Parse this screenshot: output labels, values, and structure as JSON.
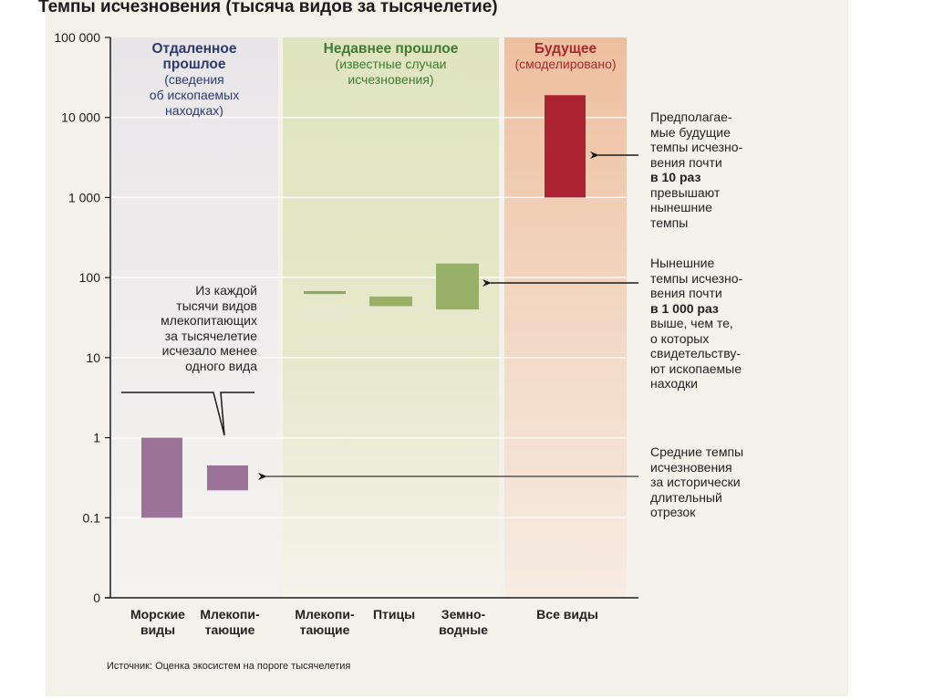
{
  "chart_data": {
    "type": "bar",
    "title": "Темпы исчезновения (тысяча видов за тысячелетие)",
    "yscale": "log",
    "ylim": [
      0.01,
      100000
    ],
    "yticks": [
      {
        "value": 100000,
        "label": "100 000"
      },
      {
        "value": 10000,
        "label": "10 000"
      },
      {
        "value": 1000,
        "label": "1 000"
      },
      {
        "value": 100,
        "label": "100"
      },
      {
        "value": 10,
        "label": "10"
      },
      {
        "value": 1,
        "label": "1"
      },
      {
        "value": 0.1,
        "label": "0.1"
      },
      {
        "value": 0.01,
        "label": "0"
      }
    ],
    "panels": [
      {
        "title": "Отдаленное прошлое",
        "title_lines": [
          "Отдаленное",
          "прошлое"
        ],
        "subtitle_lines": [
          "(сведения",
          "об ископаемых",
          "находках)"
        ],
        "color": "#2e3a6e",
        "bg": "#e9e7e8"
      },
      {
        "title": "Недавнее прошлое",
        "title_lines": [
          "Недавнее прошлое"
        ],
        "subtitle_lines": [
          "(известные случаи",
          "исчезновения)"
        ],
        "color": "#3f7a35",
        "bg": "#e2e6c4"
      },
      {
        "title": "Будущее",
        "title_lines": [
          "Будущее"
        ],
        "subtitle_lines": [
          "(смоделировано)"
        ],
        "color": "#a8282a",
        "bg": "#efc7a8"
      }
    ],
    "categories": [
      {
        "label_lines": [
          "Морские",
          "виды"
        ],
        "panel": 0,
        "low": 0.1,
        "high": 1,
        "color": "#9b7398"
      },
      {
        "label_lines": [
          "Млекопи-",
          "тающие"
        ],
        "panel": 0,
        "low": 0.22,
        "high": 0.45,
        "color": "#9b7398"
      },
      {
        "label_lines": [
          "Млекопи-",
          "тающие"
        ],
        "panel": 1,
        "low": 64,
        "high": 66,
        "color": "#8ea867"
      },
      {
        "label_lines": [
          "Птицы"
        ],
        "panel": 1,
        "low": 44,
        "high": 58,
        "color": "#99b068"
      },
      {
        "label_lines": [
          "Земно-",
          "водные"
        ],
        "panel": 1,
        "low": 40,
        "high": 150,
        "color": "#99b068"
      },
      {
        "label_lines": [
          "Все виды"
        ],
        "panel": 2,
        "low": 1000,
        "high": 19000,
        "color": "#ab2230"
      }
    ],
    "annotations": {
      "callout": [
        "Из каждой",
        "тысячи видов",
        "млекопитающих",
        "за тысячелетие",
        "исчезало менее",
        "одного вида"
      ],
      "future": [
        {
          "text": "Предполагае-",
          "bold": false
        },
        {
          "text": "мые будущие",
          "bold": false
        },
        {
          "text": "темпы исчезно-",
          "bold": false
        },
        {
          "text": "вения почти",
          "bold": false
        },
        {
          "text": "в 10 раз",
          "bold": true
        },
        {
          "text": "превышают",
          "bold": false
        },
        {
          "text": "нынешние",
          "bold": false
        },
        {
          "text": "темпы",
          "bold": false
        }
      ],
      "current": [
        {
          "text": "Нынешние",
          "bold": false
        },
        {
          "text": "темпы исчезно-",
          "bold": false
        },
        {
          "text": "вения почти",
          "bold": false
        },
        {
          "text": "в 1 000 раз",
          "bold": true
        },
        {
          "text": "выше, чем те,",
          "bold": false
        },
        {
          "text": "о которых",
          "bold": false
        },
        {
          "text": "свидетельству-",
          "bold": false
        },
        {
          "text": "ют ископаемые",
          "bold": false
        },
        {
          "text": "находки",
          "bold": false
        }
      ],
      "average": [
        {
          "text": "Средние темпы",
          "bold": false
        },
        {
          "text": "исчезновения",
          "bold": false
        },
        {
          "text": "за исторически",
          "bold": false
        },
        {
          "text": "длительный",
          "bold": false
        },
        {
          "text": "отрезок",
          "bold": false
        }
      ]
    },
    "source": "Источник: Оценка экосистем на пороге тысячелетия"
  }
}
